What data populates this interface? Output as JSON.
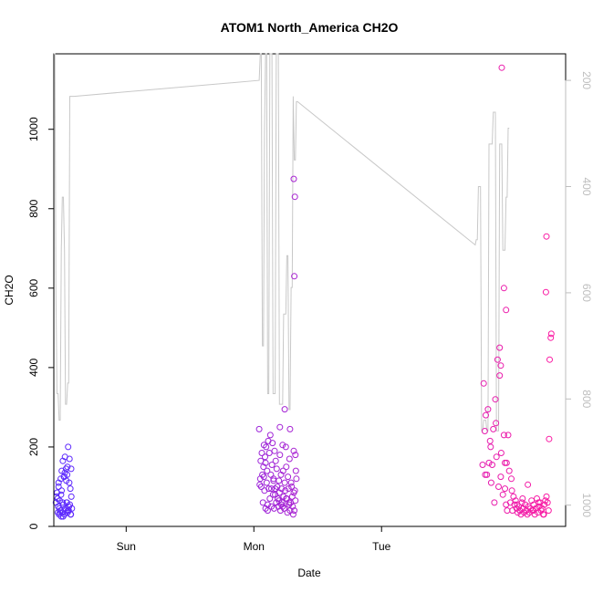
{
  "chart_data": {
    "type": "scatter",
    "title": "ATOM1 North_America CH2O",
    "xlabel": "Date",
    "ylabel": "CH2O",
    "x_ticks": [
      "Sun",
      "Mon",
      "Tue"
    ],
    "x_range_hours": [
      -37.6,
      58.6
    ],
    "ylim": [
      0,
      1190
    ],
    "y_ticks": [
      0,
      200,
      400,
      600,
      800,
      1000
    ],
    "y2_ticks": [
      200,
      400,
      600,
      800,
      1000
    ],
    "y2lim": [
      1040,
      150
    ],
    "y2_reversed": true,
    "grid": false,
    "legend": "none",
    "colors": {
      "axis": "#000000",
      "y2_axis": "#bebebe",
      "line": "#c8c8c8",
      "point_start": "#5a2bff",
      "point_end": "#ff1aa0"
    },
    "series": [
      {
        "kind": "points",
        "clusters": [
          {
            "x": [
              -37.2,
              -37.0,
              -36.9,
              -36.8,
              -36.7,
              -36.6,
              -36.5,
              -36.4,
              -36.3,
              -36.2,
              -36.1,
              -36.0,
              -35.9,
              -35.8,
              -35.7,
              -35.6,
              -35.5,
              -35.4,
              -35.3,
              -35.2,
              -35.1,
              -35.0,
              -34.9,
              -34.8,
              -34.7,
              -34.6,
              -34.5,
              -34.4,
              -34.3,
              -34.2,
              -37.1,
              -36.85,
              -36.55,
              -36.25,
              -35.95,
              -35.65,
              -35.35,
              -35.05,
              -34.75,
              -34.45,
              -36.15,
              -35.85,
              -35.55,
              -35.25,
              -34.95,
              -34.65,
              -36.45,
              -35.15,
              -34.35,
              -36.7
            ],
            "y": [
              60,
              85,
              70,
              50,
              100,
              30,
              65,
              40,
              120,
              25,
              140,
              35,
              165,
              55,
              125,
              30,
              175,
              45,
              145,
              60,
              130,
              35,
              200,
              40,
              110,
              55,
              95,
              30,
              75,
              45,
              75,
              35,
              45,
              80,
              60,
              125,
              40,
              150,
              50,
              30,
              90,
              25,
              135,
              115,
              40,
              170,
              35,
              60,
              145,
              110
            ]
          },
          {
            "x": [
              1.0,
              1.2,
              1.3,
              1.4,
              1.5,
              1.6,
              1.7,
              1.8,
              1.9,
              2.0,
              2.1,
              2.2,
              2.3,
              2.4,
              2.5,
              2.6,
              2.7,
              2.8,
              2.9,
              3.0,
              3.1,
              3.2,
              3.3,
              3.4,
              3.5,
              3.6,
              3.7,
              3.8,
              3.9,
              4.0,
              4.1,
              4.2,
              4.3,
              4.4,
              4.5,
              4.6,
              4.7,
              4.8,
              4.9,
              5.0,
              5.1,
              5.2,
              5.3,
              5.4,
              5.5,
              5.6,
              5.7,
              5.8,
              5.9,
              6.0,
              6.1,
              6.2,
              6.3,
              6.4,
              6.5,
              6.6,
              6.7,
              6.8,
              6.9,
              7.0,
              7.1,
              7.2,
              7.3,
              7.4,
              7.5,
              7.6,
              7.7,
              7.8,
              7.9,
              8.0,
              1.1,
              1.9,
              2.6,
              3.3,
              4.0,
              4.7,
              5.4,
              6.1,
              6.8,
              7.5,
              2.2,
              3.7,
              5.2,
              6.6,
              7.8,
              7.6,
              7.7,
              7.5,
              5.8,
              4.9
            ],
            "y": [
              245,
              120,
              165,
              100,
              185,
              130,
              60,
              150,
              205,
              90,
              175,
              45,
              200,
              110,
              140,
              55,
              215,
              95,
              185,
              70,
              230,
              130,
              50,
              155,
              210,
              80,
              120,
              45,
              190,
              95,
              165,
              60,
              145,
              100,
              70,
              50,
              115,
              85,
              180,
              40,
              130,
              95,
              60,
              205,
              140,
              75,
              45,
              110,
              90,
              200,
              150,
              70,
              35,
              125,
              95,
              55,
              170,
              245,
              60,
              110,
              100,
              75,
              50,
              30,
              190,
              40,
              90,
              65,
              140,
              120,
              105,
              125,
              40,
              95,
              80,
              65,
              50,
              70,
              40,
              85,
              160,
              115,
              55,
              60,
              180,
              630,
              830,
              875,
              295,
              250
            ]
          },
          {
            "x": [
              43.0,
              43.2,
              43.4,
              43.6,
              43.8,
              44.0,
              44.2,
              44.4,
              44.6,
              44.8,
              45.0,
              45.2,
              45.4,
              45.6,
              45.8,
              46.0,
              46.2,
              46.4,
              46.6,
              46.8,
              47.0,
              47.2,
              47.4,
              47.6,
              47.8,
              48.0,
              48.2,
              48.4,
              48.6,
              48.8,
              49.0,
              49.2,
              49.4,
              49.6,
              49.8,
              50.0,
              50.2,
              50.4,
              50.6,
              50.8,
              51.0,
              51.2,
              51.4,
              51.6,
              51.8,
              52.0,
              52.2,
              52.4,
              52.6,
              52.8,
              53.0,
              53.2,
              53.4,
              53.6,
              53.8,
              54.0,
              54.2,
              54.4,
              54.6,
              54.8,
              55.0,
              55.2,
              55.4,
              43.5,
              44.5,
              45.5,
              46.5,
              47.5,
              48.5,
              49.5,
              50.5,
              51.5,
              52.5,
              53.5,
              54.5,
              55.5,
              55.6,
              55.8,
              55.9,
              46.2,
              46.4,
              47.0,
              47.2,
              47.4,
              54.9,
              55.0
            ],
            "y": [
              155,
              360,
              240,
              280,
              130,
              295,
              160,
              215,
              110,
              155,
              245,
              60,
              320,
              175,
              420,
              100,
              450,
              125,
              1155,
              80,
              600,
              95,
              545,
              40,
              230,
              140,
              60,
              120,
              40,
              75,
              55,
              65,
              45,
              35,
              50,
              40,
              30,
              60,
              45,
              35,
              55,
              40,
              30,
              50,
              35,
              45,
              65,
              40,
              55,
              30,
              45,
              70,
              35,
              50,
              60,
              40,
              45,
              30,
              55,
              65,
              75,
              60,
              40,
              130,
              200,
              260,
              185,
              160,
              90,
              55,
              70,
              105,
              40,
              60,
              30,
              220,
              420,
              475,
              485,
              380,
              405,
              230,
              160,
              55,
              590,
              730
            ]
          }
        ]
      },
      {
        "kind": "line",
        "axis": "y2",
        "x": [
          -37.6,
          -37.4,
          -37.2,
          -37.0,
          -36.8,
          -36.6,
          -36.4,
          -36.2,
          -36.0,
          -35.8,
          -35.6,
          -35.4,
          -35.2,
          -35.0,
          -34.8,
          -34.6,
          -34.4,
          -34.2,
          -34.0,
          -33.8,
          1.0,
          1.2,
          1.4,
          1.6,
          1.8,
          2.0,
          2.2,
          2.4,
          2.6,
          2.8,
          3.0,
          3.2,
          3.4,
          3.6,
          3.8,
          4.0,
          4.2,
          4.4,
          4.6,
          4.8,
          5.0,
          5.2,
          5.4,
          5.6,
          5.8,
          6.0,
          6.2,
          6.4,
          6.6,
          6.8,
          7.0,
          7.2,
          7.4,
          7.6,
          7.8,
          8.0,
          8.2,
          41.6,
          41.8,
          42.0,
          42.2,
          42.4,
          42.6,
          42.8,
          43.0,
          43.2,
          43.4,
          43.6,
          43.8,
          44.0,
          44.2,
          44.4,
          44.6,
          44.8,
          45.0,
          45.2,
          45.4,
          45.6,
          45.8,
          46.0,
          46.2,
          46.4,
          46.6,
          46.8,
          47.0,
          47.2,
          47.4,
          47.6,
          47.8,
          48.0
        ],
        "y": [
          150,
          150,
          600,
          790,
          790,
          840,
          840,
          520,
          420,
          420,
          520,
          810,
          810,
          770,
          770,
          230,
          230,
          230,
          230,
          230,
          200,
          150,
          150,
          700,
          700,
          300,
          150,
          150,
          790,
          790,
          150,
          150,
          150,
          790,
          790,
          790,
          150,
          150,
          150,
          810,
          810,
          810,
          810,
          640,
          640,
          640,
          530,
          530,
          820,
          820,
          590,
          590,
          230,
          350,
          350,
          240,
          240,
          510,
          500,
          500,
          400,
          400,
          400,
          860,
          860,
          840,
          840,
          840,
          860,
          860,
          320,
          320,
          320,
          320,
          260,
          260,
          260,
          860,
          860,
          860,
          320,
          320,
          320,
          520,
          520,
          520,
          420,
          420,
          290,
          290
        ]
      }
    ]
  }
}
